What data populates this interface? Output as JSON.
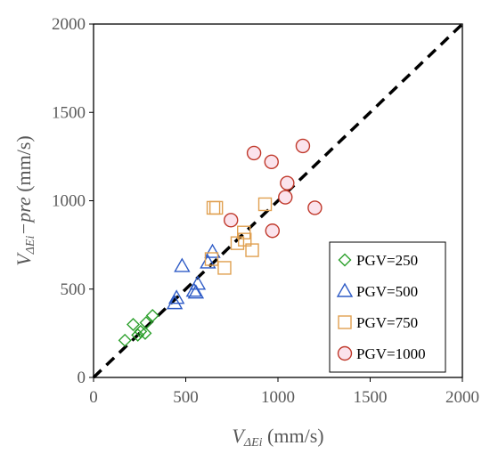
{
  "chart_data": {
    "type": "scatter",
    "xlabel": {
      "main": "V",
      "sub": "ΔEi",
      "unit": " (mm/s)"
    },
    "ylabel": {
      "main": "V",
      "sub": "ΔEi",
      "suffix": "−pre",
      "unit": " (mm/s)"
    },
    "xlim": [
      0,
      2000
    ],
    "ylim": [
      0,
      2000
    ],
    "xticks": [
      0,
      500,
      1000,
      1500,
      2000
    ],
    "yticks": [
      0,
      500,
      1000,
      1500,
      2000
    ],
    "grid": false,
    "legend_position": "bottom-right",
    "reference_line": {
      "style": "dashed",
      "color": "#000000",
      "from": [
        0,
        0
      ],
      "to": [
        2000,
        2000
      ]
    },
    "series": [
      {
        "name": "PGV=250",
        "marker": "diamond",
        "color": "#2ca02c",
        "points": [
          [
            170,
            210
          ],
          [
            215,
            300
          ],
          [
            240,
            240
          ],
          [
            255,
            260
          ],
          [
            280,
            250
          ],
          [
            285,
            310
          ],
          [
            320,
            350
          ]
        ]
      },
      {
        "name": "PGV=500",
        "marker": "triangle",
        "color": "#2e5bc6",
        "points": [
          [
            440,
            420
          ],
          [
            450,
            450
          ],
          [
            480,
            630
          ],
          [
            545,
            490
          ],
          [
            555,
            480
          ],
          [
            565,
            530
          ],
          [
            620,
            650
          ],
          [
            645,
            710
          ]
        ]
      },
      {
        "name": "PGV=750",
        "marker": "square",
        "color": "#e0a050",
        "points": [
          [
            650,
            960
          ],
          [
            665,
            960
          ],
          [
            640,
            670
          ],
          [
            710,
            620
          ],
          [
            780,
            760
          ],
          [
            820,
            780
          ],
          [
            815,
            820
          ],
          [
            860,
            720
          ],
          [
            930,
            980
          ]
        ]
      },
      {
        "name": "PGV=1000",
        "marker": "circle",
        "color": "#c0392b",
        "fill": "#fbe3ec",
        "points": [
          [
            745,
            890
          ],
          [
            870,
            1270
          ],
          [
            965,
            1220
          ],
          [
            970,
            830
          ],
          [
            1040,
            1020
          ],
          [
            1050,
            1100
          ],
          [
            1135,
            1310
          ],
          [
            1200,
            960
          ]
        ]
      }
    ]
  }
}
